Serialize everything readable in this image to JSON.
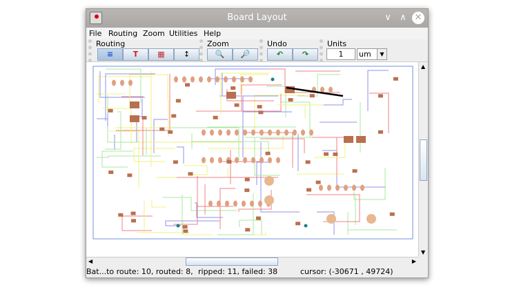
{
  "window": {
    "title": "Board Layout"
  },
  "menu": [
    "File",
    "Routing",
    "Zoom",
    "Utilities",
    "Help"
  ],
  "toolbar": {
    "routing": {
      "label": "Routing",
      "buttons": [
        "autoroute",
        "route-trace",
        "select-region",
        "drag"
      ]
    },
    "zoom": {
      "label": "Zoom",
      "buttons": [
        "zoom-region",
        "zoom-all"
      ]
    },
    "undo": {
      "label": "Undo",
      "buttons": [
        "undo",
        "redo"
      ]
    },
    "units": {
      "label": "Units",
      "value": "1",
      "unit": "um"
    }
  },
  "status": {
    "progress": "Bat...to route: 10, routed: 8,",
    "ripped": "ripped: 11, failed: 38",
    "cursor": "cursor: (-30671 , 49724)"
  },
  "colors": {
    "trace_red": "#f08080",
    "trace_green": "#a8e8a0",
    "trace_yellow": "#f0f080",
    "trace_blue": "#9090e8",
    "pad": "#b8704f",
    "outline": "#7090e0"
  }
}
